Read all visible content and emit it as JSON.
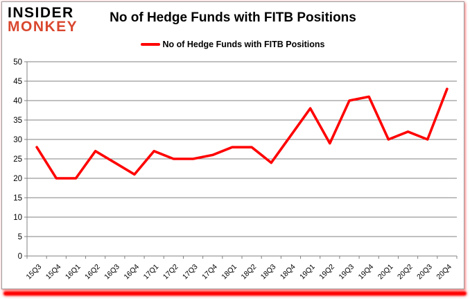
{
  "logo": {
    "line1": "INSIDER",
    "line2": "MONKEY",
    "line1_color": "#000000",
    "line2_color": "#d9472e"
  },
  "header": {
    "title": "No of Hedge Funds with FITB Positions"
  },
  "legend": {
    "label": "No of Hedge Funds with FITB Positions",
    "swatch_color": "#ff0000"
  },
  "chart_data": {
    "type": "line",
    "title": "No of Hedge Funds with FITB Positions",
    "categories": [
      "15Q3",
      "15Q4",
      "16Q1",
      "16Q2",
      "16Q3",
      "16Q4",
      "17Q1",
      "17Q2",
      "17Q3",
      "17Q4",
      "18Q1",
      "18Q2",
      "18Q3",
      "18Q4",
      "19Q1",
      "19Q2",
      "19Q3",
      "19Q4",
      "20Q1",
      "20Q2",
      "20Q3",
      "20Q4"
    ],
    "series": [
      {
        "name": "No of Hedge Funds with FITB Positions",
        "color": "#ff0000",
        "values": [
          28,
          20,
          20,
          27,
          24,
          21,
          27,
          25,
          25,
          26,
          28,
          28,
          24,
          31,
          38,
          29,
          40,
          41,
          30,
          32,
          30,
          43
        ]
      }
    ],
    "xlabel": "",
    "ylabel": "",
    "ylim": [
      0,
      50
    ],
    "ytick_step": 5,
    "grid": true,
    "gridline_color": "#808080",
    "axis_text_color": "#000000",
    "legend_position": "top"
  }
}
